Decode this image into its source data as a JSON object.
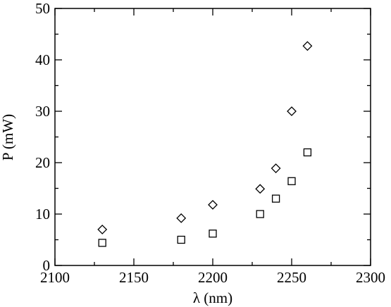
{
  "chart_data": {
    "type": "scatter",
    "xlabel": "λ (nm)",
    "ylabel": "P (mW)",
    "xlim": [
      2100,
      2300
    ],
    "xticks": [
      2100,
      2150,
      2200,
      2250,
      2300
    ],
    "xminorticks": [
      2125,
      2175,
      2225,
      2275
    ],
    "ylim": [
      0,
      50
    ],
    "yticks": [
      0,
      10,
      20,
      30,
      40,
      50
    ],
    "yminorticks": [
      5,
      15,
      25,
      35,
      45
    ],
    "series": [
      {
        "marker": "diamond",
        "color": "#000000",
        "x": [
          2130,
          2180,
          2200,
          2230,
          2240,
          2250,
          2260
        ],
        "values": [
          7,
          9.2,
          11.8,
          14.9,
          18.9,
          30,
          42.7
        ]
      },
      {
        "marker": "square",
        "color": "#000000",
        "x": [
          2130,
          2180,
          2200,
          2230,
          2240,
          2250,
          2260
        ],
        "values": [
          4.4,
          5,
          6.2,
          10,
          13,
          16.4,
          22
        ]
      }
    ]
  }
}
